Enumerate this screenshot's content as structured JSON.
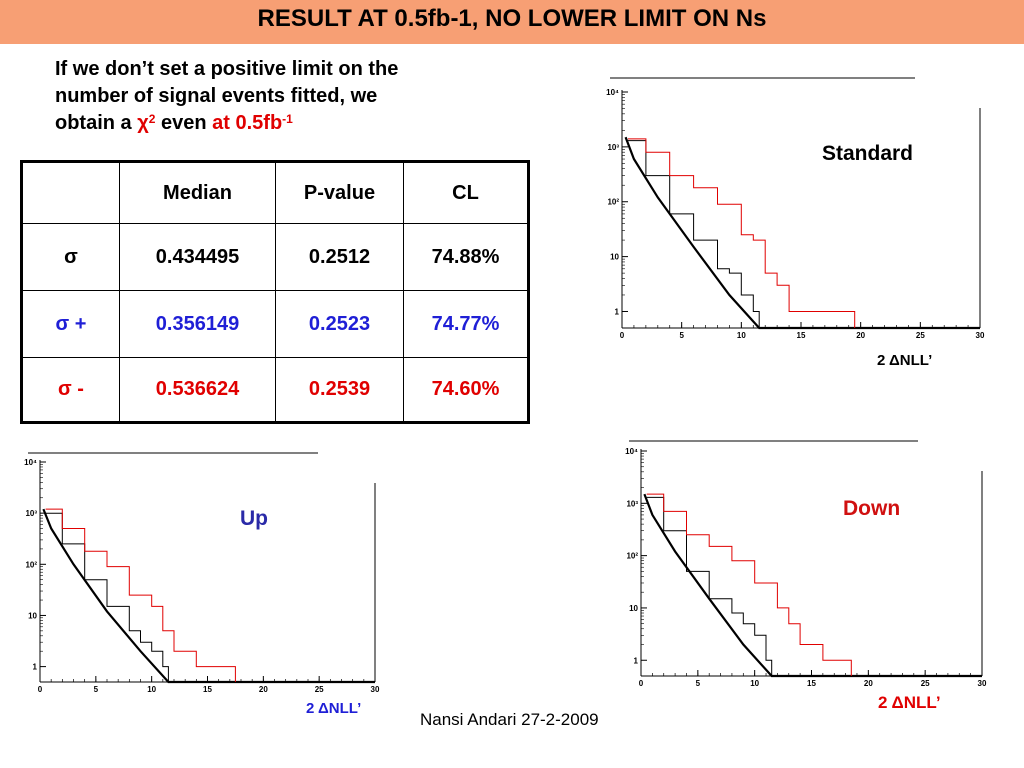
{
  "header": {
    "title": "RESULT  AT 0.5fb-1, NO LOWER LIMIT ON Ns"
  },
  "intro": {
    "line1": "If we don’t set a positive limit on the",
    "line2": "number of signal events fitted, we",
    "line3_pre": "obtain a ",
    "chi": "χ",
    "chi_exp": "2",
    "line3_mid": " even ",
    "line3_red": "at 0.5fb",
    "red_exp": "-1"
  },
  "table": {
    "headers": [
      "",
      "Median",
      "P-value",
      "CL"
    ],
    "rows": [
      {
        "label": "σ",
        "median": "0.434495",
        "pvalue": "0.2512",
        "cl": "74.88%",
        "color": "#000000"
      },
      {
        "label": "σ +",
        "median": "0.356149",
        "pvalue": "0.2523",
        "cl": "74.77%",
        "color": "#1f1fd6"
      },
      {
        "label": "σ -",
        "median": "0.536624",
        "pvalue": "0.2539",
        "cl": "74.60%",
        "color": "#e00000"
      }
    ]
  },
  "plots": {
    "standard": {
      "label": "Standard",
      "xlabel": "2 ΔNLL’"
    },
    "up": {
      "label": "Up",
      "xlabel": "2 ΔNLL’"
    },
    "down": {
      "label": "Down",
      "xlabel": "2 ΔNLL’"
    }
  },
  "footer": {
    "text": "Nansi Andari 27-2-2009"
  },
  "chart_data": [
    {
      "type": "line",
      "title": "Standard",
      "xlabel": "2 ΔNLL’",
      "ylabel": "",
      "xlim": [
        0,
        30
      ],
      "ylim": [
        0.5,
        10000
      ],
      "y_scale": "log",
      "x_ticks": [
        "0",
        "5",
        "10",
        "15",
        "20",
        "25",
        "30"
      ],
      "y_ticks": [
        "1",
        "10",
        "10²",
        "10³",
        "10⁴"
      ],
      "series": [
        {
          "color": "#000000",
          "style": "fit",
          "x": [
            0.3,
            1,
            3,
            6,
            9,
            11.5
          ],
          "y": [
            1500,
            600,
            120,
            15,
            2,
            0.5
          ]
        },
        {
          "color": "#000000",
          "style": "hist",
          "x": [
            0.5,
            2,
            4,
            6,
            8,
            9,
            10,
            11
          ],
          "y": [
            1300,
            300,
            60,
            20,
            6,
            5,
            2,
            1
          ]
        },
        {
          "color": "#e00000",
          "style": "hist",
          "x": [
            0.5,
            2,
            4,
            6,
            8,
            10,
            11,
            12,
            13,
            14,
            16,
            19
          ],
          "y": [
            1400,
            800,
            300,
            180,
            90,
            25,
            20,
            5,
            3,
            1,
            1,
            1
          ]
        }
      ]
    },
    {
      "type": "line",
      "title": "Up",
      "xlabel": "2 ΔNLL’",
      "ylabel": "",
      "xlim": [
        0,
        30
      ],
      "ylim": [
        0.5,
        10000
      ],
      "y_scale": "log",
      "x_ticks": [
        "0",
        "5",
        "10",
        "15",
        "20",
        "25",
        "30"
      ],
      "y_ticks": [
        "1",
        "10",
        "10²",
        "10³",
        "10⁴"
      ],
      "series": [
        {
          "color": "#000000",
          "style": "fit",
          "x": [
            0.3,
            1,
            3,
            6,
            9,
            11.5
          ],
          "y": [
            1200,
            500,
            100,
            12,
            2,
            0.5
          ]
        },
        {
          "color": "#000000",
          "style": "hist",
          "x": [
            0.5,
            2,
            4,
            6,
            8,
            9,
            10,
            11
          ],
          "y": [
            1000,
            250,
            50,
            15,
            5,
            3,
            2,
            1
          ]
        },
        {
          "color": "#e00000",
          "style": "hist",
          "x": [
            0.5,
            2,
            4,
            6,
            8,
            10,
            11,
            12,
            14,
            16,
            17
          ],
          "y": [
            1200,
            500,
            180,
            90,
            25,
            15,
            5,
            2,
            1,
            1,
            1
          ]
        }
      ]
    },
    {
      "type": "line",
      "title": "Down",
      "xlabel": "2 ΔNLL’",
      "ylabel": "",
      "xlim": [
        0,
        30
      ],
      "ylim": [
        0.5,
        10000
      ],
      "y_scale": "log",
      "x_ticks": [
        "0",
        "5",
        "10",
        "15",
        "20",
        "25",
        "30"
      ],
      "y_ticks": [
        "1",
        "10",
        "10²",
        "10³",
        "10⁴"
      ],
      "series": [
        {
          "color": "#000000",
          "style": "fit",
          "x": [
            0.3,
            1,
            3,
            6,
            9,
            11.5
          ],
          "y": [
            1500,
            600,
            120,
            15,
            2,
            0.5
          ]
        },
        {
          "color": "#000000",
          "style": "hist",
          "x": [
            0.5,
            2,
            4,
            6,
            8,
            9,
            10,
            11
          ],
          "y": [
            1300,
            300,
            50,
            15,
            8,
            5,
            3,
            1
          ]
        },
        {
          "color": "#e00000",
          "style": "hist",
          "x": [
            0.5,
            2,
            4,
            6,
            8,
            10,
            12,
            13,
            14,
            16,
            18
          ],
          "y": [
            1500,
            700,
            250,
            150,
            80,
            30,
            10,
            5,
            2,
            1,
            1
          ]
        }
      ]
    }
  ]
}
